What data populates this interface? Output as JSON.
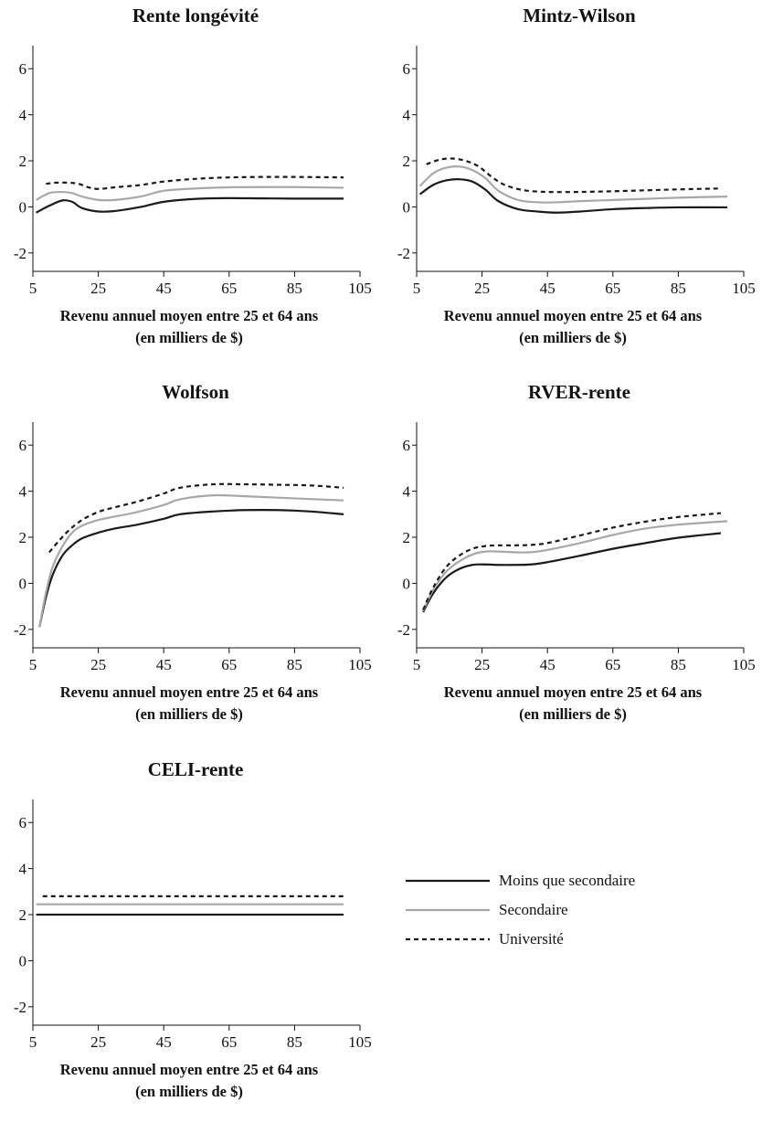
{
  "colors": {
    "moins": "#1a1a1a",
    "secondaire": "#a8a8a8",
    "universite": "#1a1a1a"
  },
  "legend": {
    "items": [
      {
        "label": "Moins que secondaire",
        "style": "solid-black"
      },
      {
        "label": "Secondaire",
        "style": "solid-gray"
      },
      {
        "label": "Université",
        "style": "dashed-black"
      }
    ]
  },
  "chart_data": [
    {
      "type": "line",
      "title": "Rente longévité",
      "xlabel": "Revenu annuel moyen entre 25 et 64 ans",
      "xlabel2": "(en milliers de $)",
      "xlim": [
        5,
        105
      ],
      "ylim": [
        -2.8,
        7
      ],
      "xticks": [
        5,
        25,
        45,
        65,
        85,
        105
      ],
      "yticks": [
        6,
        4,
        2,
        0,
        -2
      ],
      "series": [
        {
          "name": "Moins que secondaire",
          "x": [
            6,
            10,
            14,
            17,
            20,
            25,
            30,
            38,
            45,
            55,
            65,
            75,
            85,
            100
          ],
          "y": [
            -0.25,
            0.05,
            0.28,
            0.22,
            -0.05,
            -0.2,
            -0.18,
            0.0,
            0.22,
            0.35,
            0.38,
            0.37,
            0.36,
            0.36
          ]
        },
        {
          "name": "Secondaire",
          "x": [
            6,
            10,
            14,
            17,
            20,
            25,
            30,
            38,
            45,
            55,
            65,
            75,
            85,
            100
          ],
          "y": [
            0.3,
            0.6,
            0.65,
            0.6,
            0.45,
            0.3,
            0.3,
            0.45,
            0.7,
            0.8,
            0.85,
            0.86,
            0.86,
            0.83
          ]
        },
        {
          "name": "Université",
          "x": [
            9,
            12,
            16,
            19,
            22,
            25,
            30,
            38,
            45,
            55,
            65,
            75,
            85,
            100
          ],
          "y": [
            1.0,
            1.05,
            1.05,
            1.0,
            0.85,
            0.78,
            0.85,
            0.95,
            1.1,
            1.22,
            1.28,
            1.3,
            1.3,
            1.28
          ]
        }
      ]
    },
    {
      "type": "line",
      "title": "Mintz-Wilson",
      "xlabel": "Revenu annuel moyen entre 25 et 64 ans",
      "xlabel2": "(en milliers de $)",
      "xlim": [
        5,
        105
      ],
      "ylim": [
        -2.8,
        7
      ],
      "xticks": [
        5,
        25,
        45,
        65,
        85,
        105
      ],
      "yticks": [
        6,
        4,
        2,
        0,
        -2
      ],
      "series": [
        {
          "name": "Moins que secondaire",
          "x": [
            6,
            10,
            14,
            18,
            22,
            26,
            30,
            36,
            42,
            48,
            55,
            65,
            75,
            85,
            100
          ],
          "y": [
            0.55,
            0.95,
            1.15,
            1.2,
            1.1,
            0.75,
            0.25,
            -0.1,
            -0.2,
            -0.25,
            -0.2,
            -0.1,
            -0.05,
            -0.02,
            -0.02
          ]
        },
        {
          "name": "Secondaire",
          "x": [
            6,
            10,
            14,
            18,
            22,
            26,
            30,
            36,
            42,
            48,
            55,
            65,
            75,
            85,
            100
          ],
          "y": [
            0.9,
            1.45,
            1.7,
            1.75,
            1.6,
            1.25,
            0.7,
            0.3,
            0.2,
            0.2,
            0.25,
            0.3,
            0.35,
            0.4,
            0.45
          ]
        },
        {
          "name": "Université",
          "x": [
            8,
            12,
            16,
            20,
            24,
            28,
            32,
            38,
            45,
            55,
            65,
            75,
            85,
            98
          ],
          "y": [
            1.85,
            2.05,
            2.1,
            2.0,
            1.75,
            1.3,
            0.95,
            0.72,
            0.65,
            0.65,
            0.68,
            0.72,
            0.76,
            0.8
          ]
        }
      ]
    },
    {
      "type": "line",
      "title": "Wolfson",
      "xlabel": "Revenu annuel moyen entre 25 et 64 ans",
      "xlabel2": "(en milliers de $)",
      "xlim": [
        5,
        105
      ],
      "ylim": [
        -2.8,
        7
      ],
      "xticks": [
        5,
        25,
        45,
        65,
        85,
        105
      ],
      "yticks": [
        6,
        4,
        2,
        0,
        -2
      ],
      "series": [
        {
          "name": "Moins que secondaire",
          "x": [
            7,
            9,
            11,
            14,
            17,
            20,
            25,
            30,
            37,
            45,
            50,
            60,
            70,
            80,
            90,
            100
          ],
          "y": [
            -1.9,
            -0.6,
            0.35,
            1.2,
            1.65,
            1.95,
            2.2,
            2.38,
            2.55,
            2.8,
            3.0,
            3.12,
            3.18,
            3.18,
            3.12,
            3.0
          ]
        },
        {
          "name": "Secondaire",
          "x": [
            7,
            9,
            11,
            14,
            17,
            20,
            25,
            30,
            37,
            45,
            50,
            60,
            70,
            80,
            90,
            100
          ],
          "y": [
            -1.9,
            -0.4,
            0.7,
            1.6,
            2.2,
            2.5,
            2.75,
            2.9,
            3.1,
            3.4,
            3.65,
            3.82,
            3.78,
            3.72,
            3.66,
            3.6
          ]
        },
        {
          "name": "Université",
          "x": [
            10,
            13,
            16,
            20,
            25,
            30,
            37,
            45,
            50,
            60,
            70,
            80,
            90,
            100
          ],
          "y": [
            1.35,
            1.85,
            2.3,
            2.75,
            3.1,
            3.3,
            3.55,
            3.9,
            4.15,
            4.3,
            4.3,
            4.28,
            4.25,
            4.15
          ]
        }
      ]
    },
    {
      "type": "line",
      "title": "RVER-rente",
      "xlabel": "Revenu annuel moyen entre 25 et 64 ans",
      "xlabel2": "(en milliers de $)",
      "xlim": [
        5,
        105
      ],
      "ylim": [
        -2.8,
        7
      ],
      "xticks": [
        5,
        25,
        45,
        65,
        85,
        105
      ],
      "yticks": [
        6,
        4,
        2,
        0,
        -2
      ],
      "series": [
        {
          "name": "Moins que secondaire",
          "x": [
            7,
            10,
            14,
            18,
            22,
            26,
            30,
            35,
            40,
            45,
            55,
            65,
            75,
            85,
            98
          ],
          "y": [
            -1.25,
            -0.45,
            0.25,
            0.62,
            0.8,
            0.82,
            0.8,
            0.8,
            0.82,
            0.92,
            1.2,
            1.5,
            1.75,
            1.98,
            2.18
          ]
        },
        {
          "name": "Secondaire",
          "x": [
            7,
            10,
            14,
            18,
            22,
            26,
            30,
            35,
            40,
            45,
            55,
            65,
            75,
            85,
            100
          ],
          "y": [
            -1.2,
            -0.3,
            0.5,
            0.95,
            1.25,
            1.38,
            1.38,
            1.35,
            1.35,
            1.45,
            1.75,
            2.1,
            2.38,
            2.55,
            2.7
          ]
        },
        {
          "name": "Université",
          "x": [
            7,
            10,
            14,
            18,
            22,
            26,
            30,
            35,
            40,
            45,
            55,
            65,
            75,
            85,
            98
          ],
          "y": [
            -1.15,
            -0.2,
            0.7,
            1.2,
            1.5,
            1.62,
            1.65,
            1.65,
            1.67,
            1.75,
            2.08,
            2.42,
            2.68,
            2.88,
            3.05
          ]
        }
      ]
    },
    {
      "type": "line",
      "title": "CELI-rente",
      "xlabel": "Revenu annuel moyen entre 25 et 64 ans",
      "xlabel2": "(en milliers de $)",
      "xlim": [
        5,
        105
      ],
      "ylim": [
        -2.8,
        7
      ],
      "xticks": [
        5,
        25,
        45,
        65,
        85,
        105
      ],
      "yticks": [
        6,
        4,
        2,
        0,
        -2
      ],
      "series": [
        {
          "name": "Moins que secondaire",
          "x": [
            6,
            100
          ],
          "y": [
            2.0,
            2.0
          ]
        },
        {
          "name": "Secondaire",
          "x": [
            6,
            100
          ],
          "y": [
            2.45,
            2.45
          ]
        },
        {
          "name": "Université",
          "x": [
            8,
            100
          ],
          "y": [
            2.8,
            2.8
          ]
        }
      ]
    }
  ]
}
